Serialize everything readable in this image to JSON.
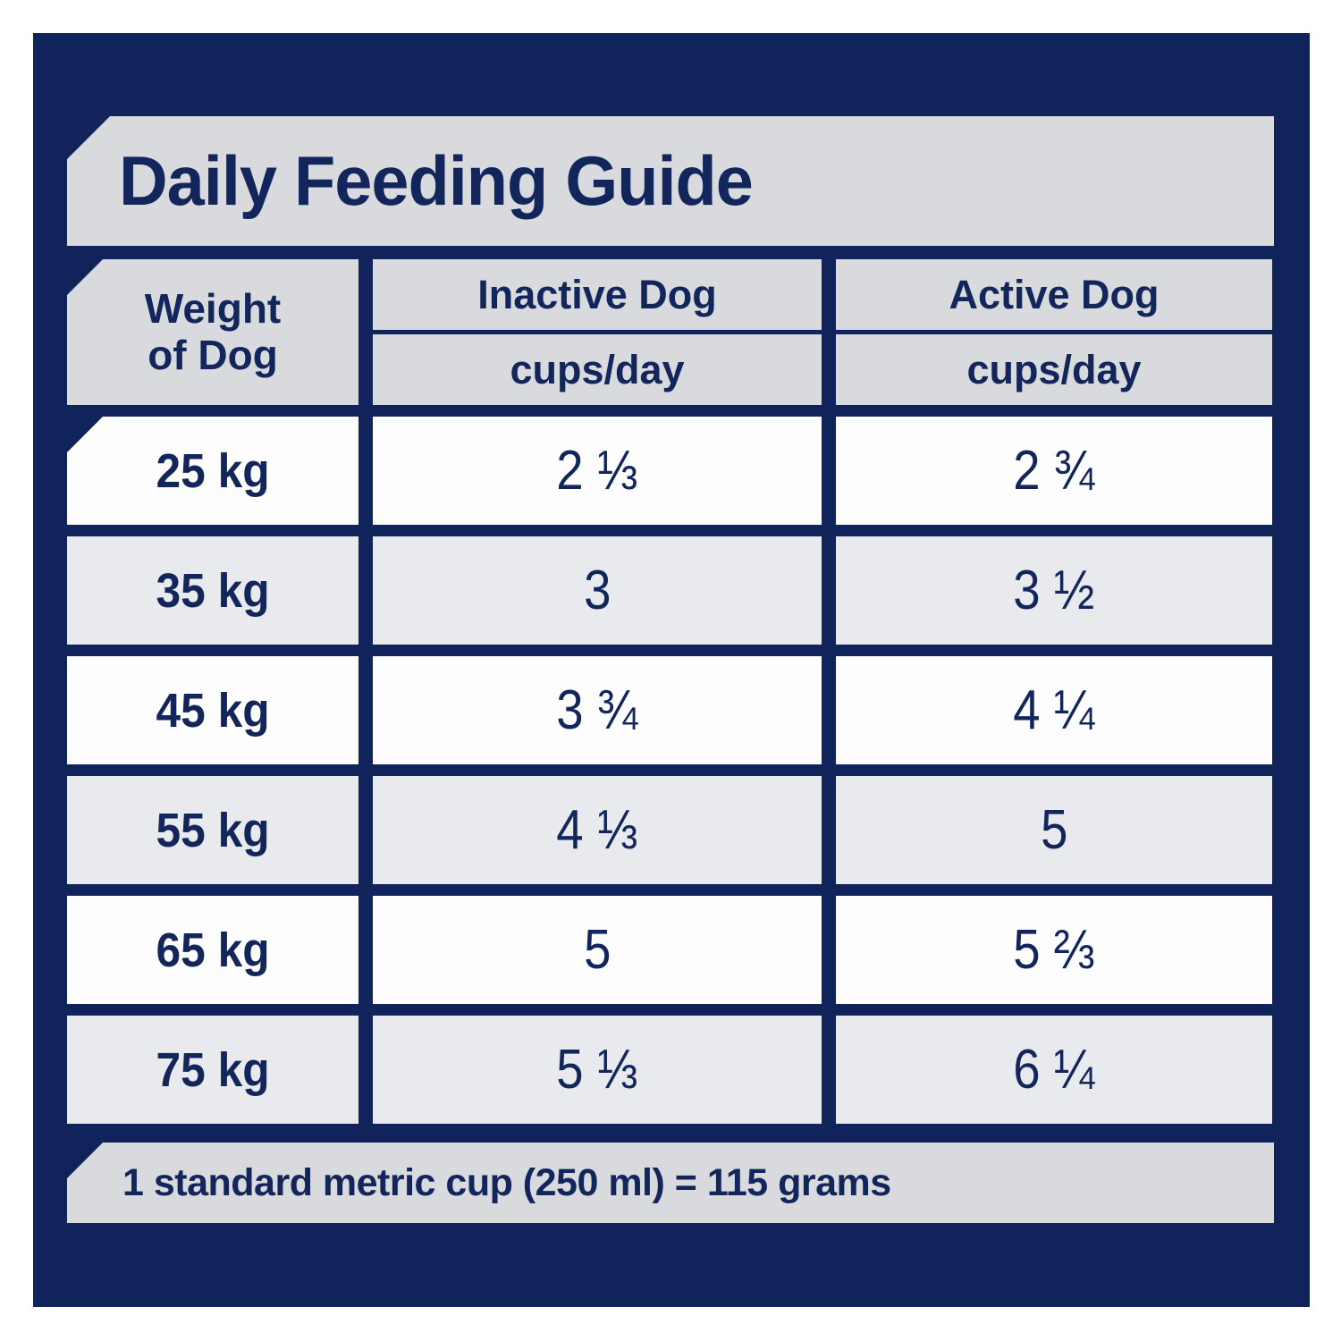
{
  "colors": {
    "navy": "#10235a",
    "banner_gray": "#d8dade",
    "row_gray": "#e9eaee",
    "row_white": "#fdfdfe",
    "text": "#13265b"
  },
  "title": "Daily Feeding Guide",
  "table": {
    "weight_header": {
      "line1": "Weight",
      "line2": "of Dog"
    },
    "columns": [
      {
        "label": "Inactive Dog",
        "sublabel": "cups/day"
      },
      {
        "label": "Active Dog",
        "sublabel": "cups/day"
      }
    ],
    "rows": [
      {
        "weight": "25 kg",
        "inactive": "2 ⅓",
        "active": "2 ¾"
      },
      {
        "weight": "35 kg",
        "inactive": "3",
        "active": "3 ½"
      },
      {
        "weight": "45 kg",
        "inactive": "3 ¾",
        "active": "4 ¼"
      },
      {
        "weight": "55 kg",
        "inactive": "4 ⅓",
        "active": "5"
      },
      {
        "weight": "65 kg",
        "inactive": "5",
        "active": "5 ⅔"
      },
      {
        "weight": "75 kg",
        "inactive": "5 ⅓",
        "active": "6 ¼"
      }
    ]
  },
  "footer": "1 standard metric cup (250 ml) = 115 grams",
  "chart_data": {
    "type": "table",
    "title": "Daily Feeding Guide",
    "columns": [
      "Weight of Dog",
      "Inactive Dog cups/day",
      "Active Dog cups/day"
    ],
    "rows": [
      [
        "25 kg",
        "2 1/3",
        "2 3/4"
      ],
      [
        "35 kg",
        "3",
        "3 1/2"
      ],
      [
        "45 kg",
        "3 3/4",
        "4 1/4"
      ],
      [
        "55 kg",
        "4 1/3",
        "5"
      ],
      [
        "65 kg",
        "5",
        "5 2/3"
      ],
      [
        "75 kg",
        "5 1/3",
        "6 1/4"
      ]
    ],
    "note": "1 standard metric cup (250 ml) = 115 grams"
  }
}
